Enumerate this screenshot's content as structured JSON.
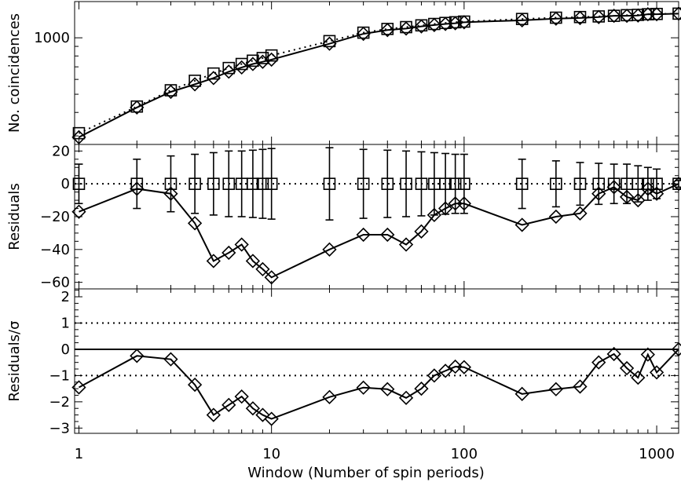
{
  "chart_data": {
    "type": "scatter",
    "x_axis": {
      "label": "Window (Number of spin periods)",
      "scale": "log",
      "range": [
        0.95,
        1300
      ],
      "tick_labels": [
        "1",
        "10",
        "100",
        "1000"
      ]
    },
    "x": [
      1,
      2,
      3,
      4,
      5,
      6,
      7,
      8,
      9,
      10,
      20,
      30,
      40,
      50,
      60,
      70,
      80,
      90,
      100,
      200,
      300,
      400,
      500,
      600,
      700,
      800,
      900,
      1000,
      1300
    ],
    "panels": [
      {
        "id": "top",
        "ylabel": "No. coincidences",
        "yscale": "log",
        "ylim": [
          270,
          1560
        ],
        "ytick_labels": [
          "1000"
        ],
        "series": [
          {
            "marker": "square",
            "line": "dotted",
            "y": [
              310,
              430,
              525,
              590,
              645,
              690,
              725,
              755,
              780,
              805,
              960,
              1065,
              1115,
              1140,
              1165,
              1185,
              1200,
              1210,
              1220,
              1260,
              1280,
              1290,
              1300,
              1310,
              1320,
              1325,
              1335,
              1340,
              1345
            ]
          },
          {
            "marker": "diamond",
            "line": "solid",
            "y": [
              295,
              425,
              515,
              565,
              610,
              660,
              695,
              725,
              745,
              765,
              930,
              1050,
              1100,
              1120,
              1150,
              1170,
              1185,
              1195,
              1210,
              1240,
              1265,
              1275,
              1290,
              1310,
              1310,
              1315,
              1335,
              1335,
              1345
            ]
          }
        ]
      },
      {
        "id": "middle",
        "ylabel": "Residuals",
        "yscale": "linear",
        "ylim": [
          -64,
          24
        ],
        "yticks": [
          -60,
          -40,
          -20,
          0,
          20
        ],
        "reference_lines": [
          {
            "y": 0,
            "style": "dotted"
          }
        ],
        "series": [
          {
            "marker": "square",
            "errorbars": true,
            "y": [
              0,
              0,
              0,
              0,
              0,
              0,
              0,
              0,
              0,
              0,
              0,
              0,
              0,
              0,
              0,
              0,
              0,
              0,
              0,
              0,
              0,
              0,
              0,
              0,
              0,
              0,
              0,
              0,
              0
            ],
            "yerr": [
              12,
              15,
              17,
              18,
              19,
              20,
              20,
              20.5,
              21,
              21.5,
              22,
              21,
              20.5,
              20,
              19.5,
              19,
              18.5,
              18,
              18,
              15,
              14,
              13,
              12.5,
              12,
              12,
              11,
              10,
              9,
              2
            ]
          },
          {
            "marker": "diamond",
            "line": "solid",
            "y": [
              -17,
              -3,
              -6,
              -24,
              -47,
              -42,
              -37,
              -47,
              -52,
              -57,
              -40,
              -31,
              -31,
              -37,
              -29,
              -19,
              -15,
              -12,
              -12,
              -25,
              -20,
              -18,
              -6,
              -2,
              -8,
              -10,
              -3,
              -6,
              0
            ]
          }
        ]
      },
      {
        "id": "bottom",
        "ylabel": "Residuals/σ",
        "yscale": "linear",
        "ylim": [
          -3.2,
          2.3
        ],
        "yticks": [
          -3,
          -2,
          -1,
          0,
          1,
          2
        ],
        "reference_lines": [
          {
            "y": 1,
            "style": "dotted"
          },
          {
            "y": -1,
            "style": "dotted"
          },
          {
            "y": 0,
            "style": "solid"
          }
        ],
        "series": [
          {
            "marker": "diamond",
            "line": "solid",
            "y": [
              -1.45,
              -0.25,
              -0.38,
              -1.35,
              -2.5,
              -2.12,
              -1.8,
              -2.25,
              -2.5,
              -2.65,
              -1.82,
              -1.46,
              -1.52,
              -1.85,
              -1.5,
              -1.0,
              -0.82,
              -0.66,
              -0.68,
              -1.7,
              -1.52,
              -1.42,
              -0.5,
              -0.18,
              -0.72,
              -1.08,
              -0.2,
              -0.88,
              0
            ]
          }
        ]
      }
    ]
  }
}
